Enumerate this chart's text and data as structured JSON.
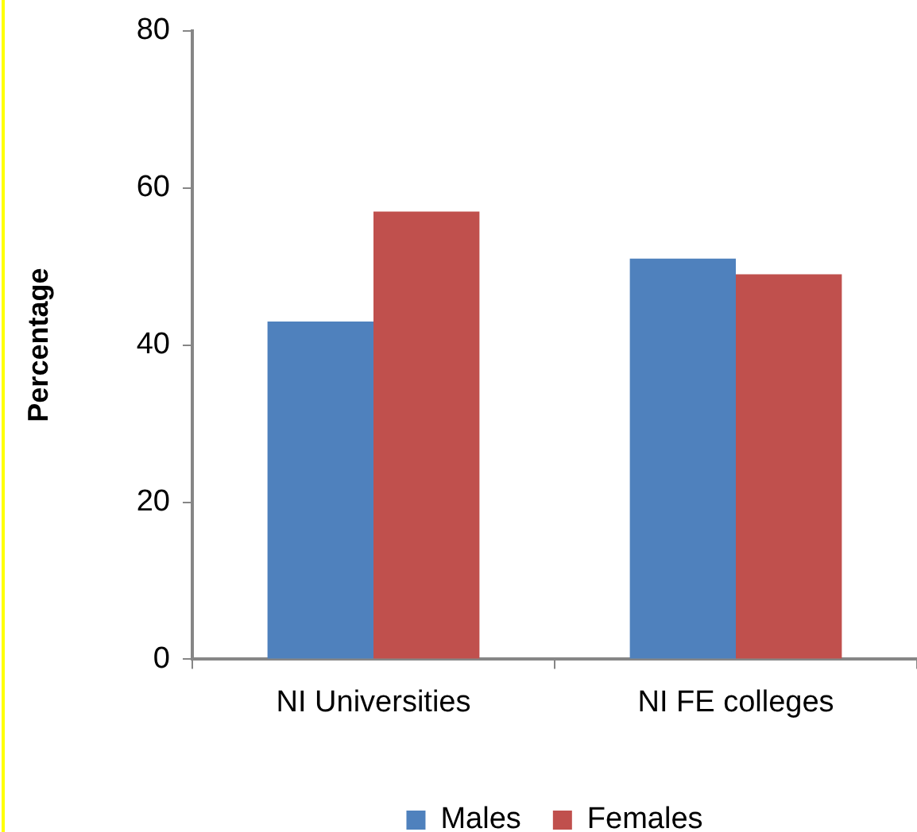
{
  "chart_data": {
    "type": "bar",
    "ylabel": "Percentage",
    "categories": [
      "NI Universities",
      "NI FE colleges"
    ],
    "series": [
      {
        "name": "Males",
        "color": "#4f81bd",
        "values": [
          43,
          51
        ]
      },
      {
        "name": "Females",
        "color": "#c0504d",
        "values": [
          57,
          49
        ]
      }
    ],
    "ylim": [
      0,
      80
    ],
    "yticks": [
      0,
      20,
      40,
      60,
      80
    ],
    "grid": false,
    "legend": "bottom"
  }
}
